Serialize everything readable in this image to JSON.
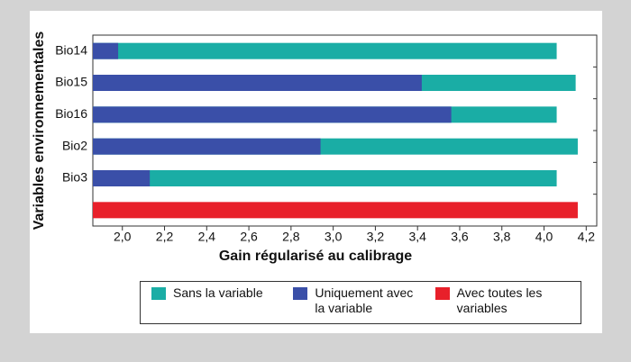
{
  "chart_data": {
    "type": "bar",
    "orientation": "horizontal",
    "x_label": "Gain régularisé au calibrage",
    "y_label": "Variables environnementales",
    "categories": [
      "Bio14",
      "Bio15",
      "Bio16",
      "Bio2",
      "Bio3",
      null
    ],
    "series": [
      {
        "name": "Sans la variable",
        "color": "#1aada5",
        "values": [
          4.06,
          4.15,
          4.06,
          4.16,
          4.06,
          null
        ]
      },
      {
        "name": "Uniquement avec la variable",
        "color": "#3a4fa8",
        "values": [
          1.98,
          3.42,
          3.56,
          2.94,
          2.13,
          null
        ]
      },
      {
        "name": "Avec toutes les variables",
        "color": "#e8202a",
        "values": [
          null,
          null,
          null,
          null,
          null,
          4.16
        ]
      }
    ],
    "xlim": [
      1.86,
      4.25
    ],
    "xticks": [
      {
        "value": 2.0,
        "label": "2,0"
      },
      {
        "value": 2.2,
        "label": "2,2"
      },
      {
        "value": 2.4,
        "label": "2,4"
      },
      {
        "value": 2.6,
        "label": "2,6"
      },
      {
        "value": 2.8,
        "label": "2,8"
      },
      {
        "value": 3.0,
        "label": "3,0"
      },
      {
        "value": 3.2,
        "label": "3,2"
      },
      {
        "value": 3.4,
        "label": "3,4"
      },
      {
        "value": 3.6,
        "label": "3,6"
      },
      {
        "value": 3.8,
        "label": "3,8"
      },
      {
        "value": 4.0,
        "label": "4,0"
      },
      {
        "value": 4.2,
        "label": "4,2"
      }
    ],
    "legend": "bottom"
  }
}
